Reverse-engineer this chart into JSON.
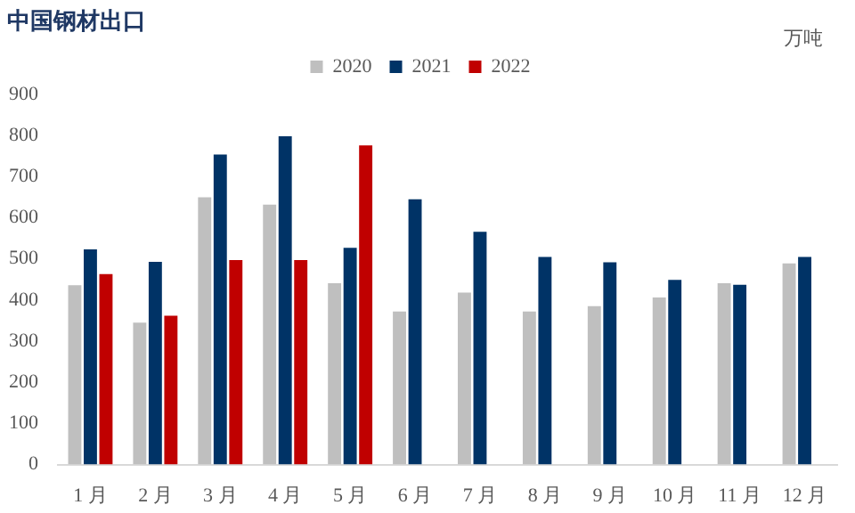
{
  "chart_data": {
    "type": "bar",
    "title": "中国钢材出口",
    "annotations": [
      "万吨"
    ],
    "categories": [
      "1 月",
      "2 月",
      "3 月",
      "4 月",
      "5 月",
      "6 月",
      "7 月",
      "8 月",
      "9 月",
      "10 月",
      "11 月",
      "12 月"
    ],
    "series": [
      {
        "name": "2020",
        "color": "#bfbfbf",
        "values": [
          436,
          345,
          650,
          632,
          441,
          372,
          418,
          372,
          385,
          406,
          441,
          489
        ]
      },
      {
        "name": "2021",
        "color": "#003366",
        "values": [
          523,
          493,
          754,
          798,
          527,
          645,
          566,
          505,
          492,
          449,
          437,
          505
        ]
      },
      {
        "name": "2022",
        "color": "#c00000",
        "values": [
          463,
          362,
          497,
          497,
          776,
          null,
          null,
          null,
          null,
          null,
          null,
          null
        ]
      }
    ],
    "ylim": [
      0,
      900
    ],
    "yticks": [
      0,
      100,
      200,
      300,
      400,
      500,
      600,
      700,
      800,
      900
    ],
    "grid": false,
    "legend": "top"
  }
}
